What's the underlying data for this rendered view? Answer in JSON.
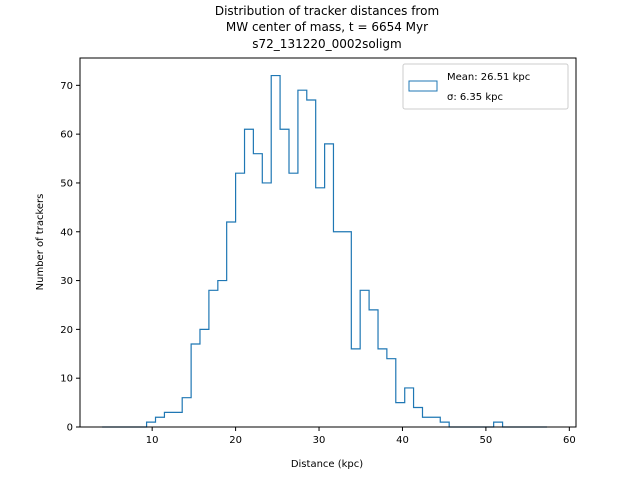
{
  "chart_data": {
    "type": "histogram",
    "title_lines": [
      "Distribution of tracker distances from",
      "MW center of mass, t = 6654 Myr",
      "s72_131220_0002soligm"
    ],
    "xlabel": "Distance (kpc)",
    "ylabel": "Number of trackers",
    "xlim": [
      1.35,
      60.8
    ],
    "ylim": [
      0,
      75.6
    ],
    "xticks": [
      10,
      20,
      30,
      40,
      50,
      60
    ],
    "yticks": [
      0,
      10,
      20,
      30,
      40,
      50,
      60,
      70
    ],
    "bin_edges": [
      4.0,
      5.07,
      6.13,
      7.2,
      8.27,
      9.33,
      10.4,
      11.47,
      12.53,
      13.6,
      14.67,
      15.73,
      16.8,
      17.87,
      18.93,
      20.0,
      21.07,
      22.13,
      23.2,
      24.27,
      25.33,
      26.4,
      27.47,
      28.53,
      29.6,
      30.67,
      31.73,
      32.8,
      33.87,
      34.93,
      36.0,
      37.07,
      38.13,
      39.2,
      40.27,
      41.33,
      42.4,
      43.47,
      44.53,
      45.6,
      46.67,
      47.73,
      48.8,
      49.87,
      50.93,
      52.0,
      53.07,
      54.13,
      55.2,
      56.27,
      57.33
    ],
    "counts": [
      0,
      0,
      0,
      0,
      0,
      1,
      2,
      3,
      3,
      6,
      17,
      20,
      28,
      30,
      42,
      52,
      61,
      56,
      50,
      72,
      61,
      52,
      69,
      67,
      49,
      58,
      40,
      40,
      16,
      28,
      24,
      16,
      14,
      5,
      8,
      4,
      2,
      2,
      1,
      0,
      0,
      0,
      0,
      0,
      1,
      0,
      0,
      0,
      0,
      0
    ],
    "color": "#1f77b4",
    "legend": {
      "placement": "upper-right",
      "lines": [
        "Mean: 26.51 kpc",
        "σ: 6.35 kpc"
      ]
    }
  }
}
